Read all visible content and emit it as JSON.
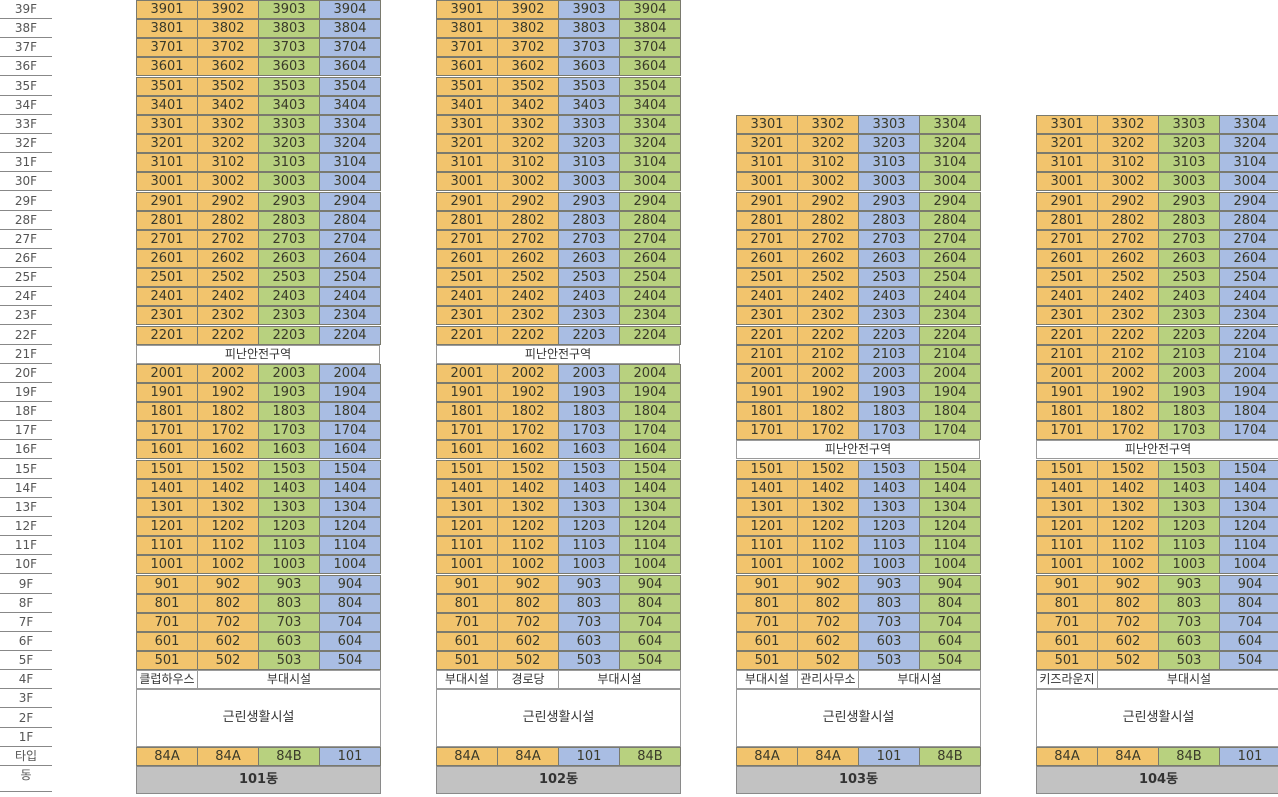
{
  "colors": {
    "yellow": "#f2c46d",
    "green": "#b8d17f",
    "blue": "#a9bde3"
  },
  "floor_labels": [
    "39F",
    "38F",
    "37F",
    "36F",
    "35F",
    "34F",
    "33F",
    "32F",
    "31F",
    "30F",
    "29F",
    "28F",
    "27F",
    "26F",
    "25F",
    "24F",
    "23F",
    "22F",
    "21F",
    "20F",
    "19F",
    "18F",
    "17F",
    "16F",
    "15F",
    "14F",
    "13F",
    "12F",
    "11F",
    "10F",
    "9F",
    "8F",
    "7F",
    "6F",
    "5F",
    "4F",
    "3F",
    "2F",
    "1F",
    "타입",
    "동"
  ],
  "refuge_label": "피난안전구역",
  "commercial_label": "근린생활시설",
  "buildings": [
    {
      "name": "101동",
      "top_floor": 39,
      "refuge_floor": 21,
      "col_colors": [
        "yellow",
        "yellow",
        "green",
        "blue"
      ],
      "types": [
        "84A",
        "84A",
        "84B",
        "101"
      ],
      "facilities": [
        {
          "label": "클럽하우스",
          "span": 1
        },
        {
          "label": "부대시설",
          "span": 3
        }
      ]
    },
    {
      "name": "102동",
      "top_floor": 39,
      "refuge_floor": 21,
      "col_colors": [
        "yellow",
        "yellow",
        "blue",
        "green"
      ],
      "types": [
        "84A",
        "84A",
        "101",
        "84B"
      ],
      "facilities": [
        {
          "label": "부대시설",
          "span": 1
        },
        {
          "label": "경로당",
          "span": 1
        },
        {
          "label": "부대시설",
          "span": 2
        }
      ]
    },
    {
      "name": "103동",
      "top_floor": 33,
      "refuge_floor": 16,
      "col_colors": [
        "yellow",
        "yellow",
        "blue",
        "green"
      ],
      "types": [
        "84A",
        "84A",
        "101",
        "84B"
      ],
      "facilities": [
        {
          "label": "부대시설",
          "span": 1
        },
        {
          "label": "관리사무소",
          "span": 1
        },
        {
          "label": "부대시설",
          "span": 2
        }
      ]
    },
    {
      "name": "104동",
      "top_floor": 33,
      "refuge_floor": 16,
      "col_colors": [
        "yellow",
        "yellow",
        "green",
        "blue"
      ],
      "types": [
        "84A",
        "84A",
        "84B",
        "101"
      ],
      "facilities": [
        {
          "label": "키즈라운지",
          "span": 1
        },
        {
          "label": "부대시설",
          "span": 3
        }
      ]
    }
  ]
}
